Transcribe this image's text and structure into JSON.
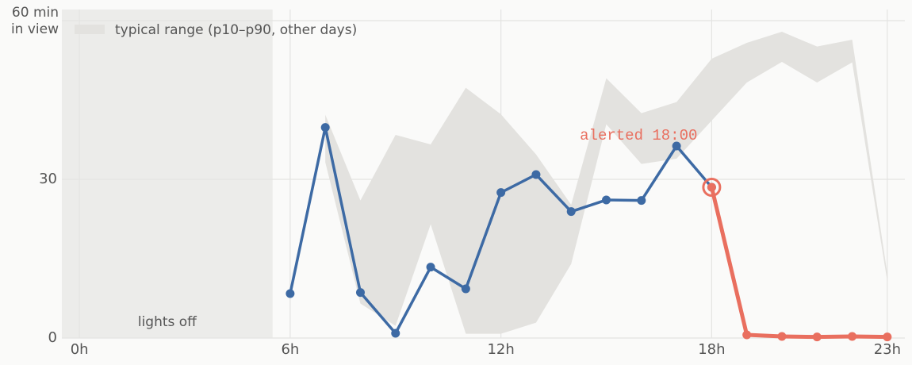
{
  "chart_data": {
    "type": "line",
    "xlim": [
      -0.5,
      23.5
    ],
    "ylim": [
      0,
      60
    ],
    "xticks": [
      {
        "value": 0,
        "label": "0h"
      },
      {
        "value": 6,
        "label": "6h"
      },
      {
        "value": 12,
        "label": "12h"
      },
      {
        "value": 18,
        "label": "18h"
      },
      {
        "value": 23,
        "label": "23h"
      }
    ],
    "yticks": [
      0,
      30,
      {
        "value": 60,
        "label": "60 min in view"
      }
    ],
    "grid": true,
    "shade": {
      "label": "lights off",
      "span": [
        -0.5,
        5.5
      ],
      "color": "#ececea"
    },
    "band": {
      "name": "typical range (p10–p90, other days)",
      "color": "#e3e2df",
      "x": [
        7,
        8,
        9,
        10,
        11,
        12,
        13,
        14,
        15,
        16,
        17,
        18,
        19,
        20,
        21,
        22,
        23
      ],
      "upper": [
        42.2,
        26,
        38.4,
        36.6,
        47.3,
        42.3,
        34.7,
        25.2,
        49.1,
        42.5,
        44.6,
        52.8,
        55.8,
        57.9,
        55.1,
        56.4,
        12.2
      ],
      "lower": [
        33.2,
        6.5,
        2.3,
        21.5,
        0.8,
        0.8,
        2.9,
        14,
        40.4,
        32.9,
        33.9,
        41.1,
        48.3,
        52.2,
        48.3,
        52.1,
        10.7
      ]
    },
    "series": [
      {
        "color": "#3d6aa4",
        "x": [
          6,
          7,
          8,
          9,
          10,
          11,
          12,
          13,
          14,
          15,
          16,
          17,
          18
        ],
        "values": [
          8.4,
          39.8,
          8.6,
          0.9,
          13.4,
          9.3,
          27.5,
          30.9,
          23.9,
          26.1,
          26,
          36.3,
          28.5
        ]
      },
      {
        "color": "#e96f5f",
        "x": [
          18,
          19,
          20,
          21,
          22,
          23
        ],
        "values": [
          28.5,
          0.6,
          0.3,
          0.2,
          0.3,
          0.2
        ]
      }
    ],
    "annotation": {
      "label": "alerted 18:00",
      "x": 18,
      "color": "#e96f5f"
    }
  }
}
